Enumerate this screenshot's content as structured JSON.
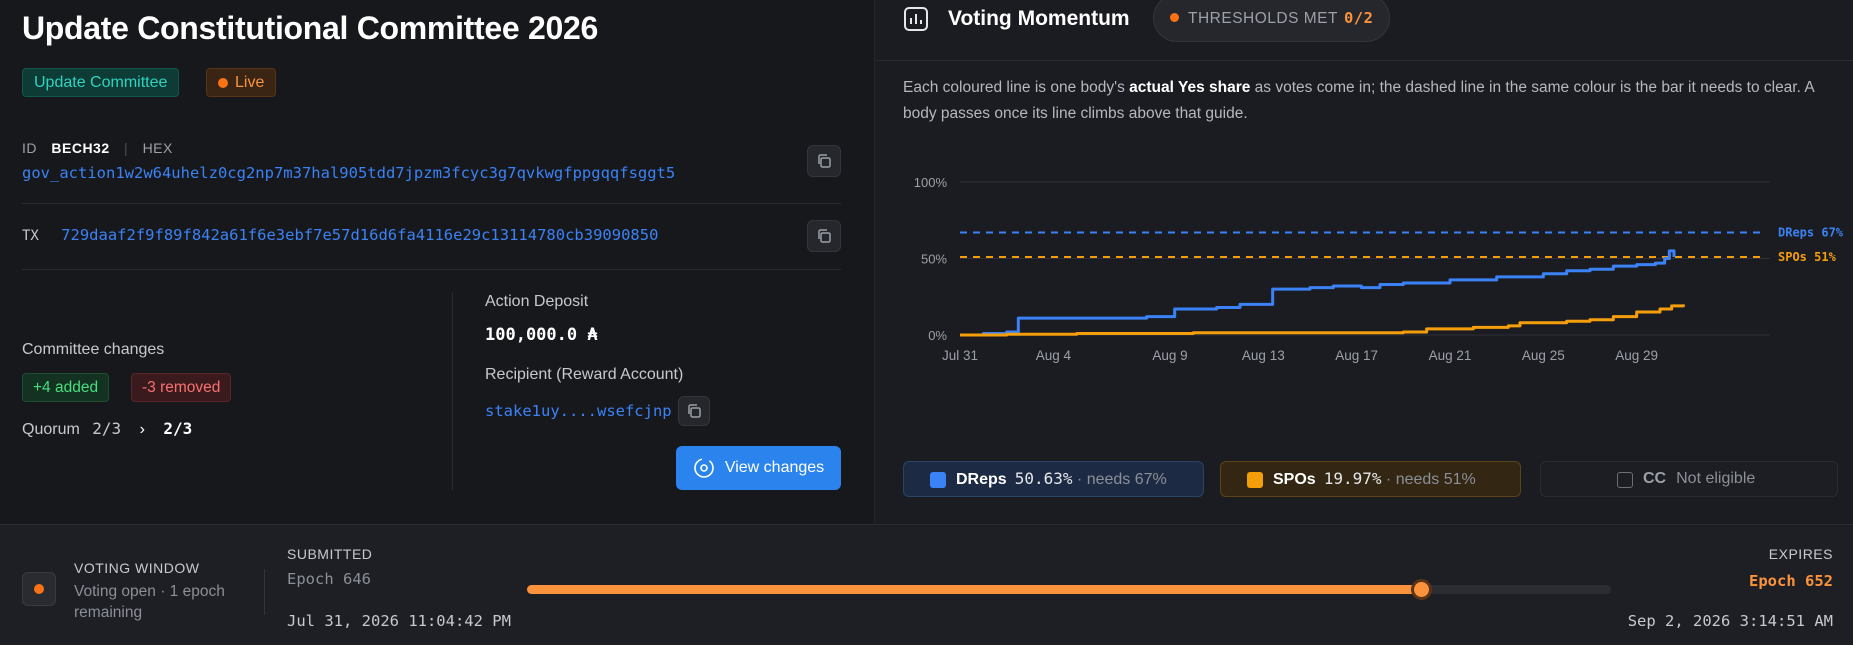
{
  "title": "Update Constitutional Committee 2026",
  "type_badge": "Update Committee",
  "status_badge": "Live",
  "id_section": {
    "label": "ID",
    "formats": [
      "BECH32",
      "HEX"
    ],
    "value": "gov_action1w2w64uhelz0cg2np7m37hal905tdd7jpzm3fcyc3g7qvkwgfppgqqfsggt5"
  },
  "tx": {
    "label": "TX",
    "value": "729daaf2f9f89f842a61f6e3ebf7e57d16d6fa4116e29c13114780cb39090850"
  },
  "committee": {
    "title": "Committee changes",
    "added": "+4 added",
    "removed": "-3 removed",
    "quorum_label": "Quorum",
    "quorum_old": "2/3",
    "quorum_arrow": "›",
    "quorum_new": "2/3"
  },
  "deposit": {
    "label": "Action Deposit",
    "value": "100,000.0 ₳",
    "recipient_label": "Recipient (Reward Account)",
    "recipient_value": "stake1uy....wsefcjnp"
  },
  "view_button": "View changes",
  "momentum": {
    "title": "Voting Momentum",
    "thresholds_label": "THRESHOLDS MET",
    "thresholds_value": "0/2",
    "description_pre": "Each coloured line is one body's ",
    "description_bold": "actual Yes share",
    "description_post": " as votes come in; the dashed line in the same colour is the bar it needs to clear. A body passes once its line climbs above that guide."
  },
  "chart_data": {
    "type": "line",
    "x_ticks": [
      "Jul 31",
      "Aug 4",
      "Aug 9",
      "Aug 13",
      "Aug 17",
      "Aug 21",
      "Aug 25",
      "Aug 29"
    ],
    "y_ticks": [
      "100%",
      "50%",
      "0%"
    ],
    "ylim": [
      0,
      100
    ],
    "xlim_days": [
      0,
      33
    ],
    "series": [
      {
        "name": "DReps",
        "color": "#3b82f6",
        "points": [
          [
            0,
            0
          ],
          [
            1,
            1
          ],
          [
            2,
            2
          ],
          [
            2.5,
            2
          ],
          [
            2.5,
            11
          ],
          [
            4,
            11
          ],
          [
            7,
            11
          ],
          [
            8,
            12
          ],
          [
            9.2,
            13
          ],
          [
            9.2,
            17
          ],
          [
            11,
            18
          ],
          [
            12,
            20
          ],
          [
            13.4,
            21
          ],
          [
            13.4,
            30
          ],
          [
            15,
            31
          ],
          [
            16,
            32
          ],
          [
            17.2,
            31
          ],
          [
            18,
            33
          ],
          [
            19,
            34
          ],
          [
            21,
            36
          ],
          [
            23,
            38
          ],
          [
            25,
            40
          ],
          [
            26,
            41
          ],
          [
            26,
            42
          ],
          [
            27,
            43
          ],
          [
            28,
            45
          ],
          [
            29,
            46
          ],
          [
            29.8,
            47
          ],
          [
            30.2,
            50
          ],
          [
            30.4,
            55
          ],
          [
            30.6,
            51
          ]
        ]
      },
      {
        "name": "SPOs",
        "color": "#f59e0b",
        "points": [
          [
            0,
            0
          ],
          [
            2,
            0.5
          ],
          [
            5,
            1
          ],
          [
            10,
            1.5
          ],
          [
            17,
            1.5
          ],
          [
            19,
            2
          ],
          [
            20,
            4
          ],
          [
            22,
            5
          ],
          [
            23.5,
            6
          ],
          [
            24,
            8
          ],
          [
            26,
            9
          ],
          [
            27,
            10
          ],
          [
            28,
            12
          ],
          [
            29,
            15
          ],
          [
            30,
            17
          ],
          [
            30.5,
            19
          ],
          [
            31,
            20
          ]
        ]
      }
    ],
    "thresholds": [
      {
        "name": "DReps 67%",
        "value": 67,
        "color": "#3b82f6"
      },
      {
        "name": "SPOs 51%",
        "value": 51,
        "color": "#f59e0b"
      }
    ]
  },
  "legend": {
    "dreps": {
      "name": "DReps",
      "pct": "50.63%",
      "needs": "needs 67%",
      "color": "#3b82f6"
    },
    "spos": {
      "name": "SPOs",
      "pct": "19.97%",
      "needs": "needs 51%",
      "color": "#f59e0b"
    },
    "cc": {
      "name": "CC",
      "status": "Not eligible"
    }
  },
  "voting_window": {
    "title": "VOTING WINDOW",
    "subtitle": "Voting open · 1 epoch remaining",
    "submitted_label": "SUBMITTED",
    "submitted_epoch": "Epoch 646",
    "submitted_date": "Jul 31, 2026 11:04:42 PM",
    "progress": 0.825,
    "expires_label": "EXPIRES",
    "expires_epoch": "Epoch 652",
    "expires_date": "Sep 2, 2026 3:14:51 AM"
  }
}
